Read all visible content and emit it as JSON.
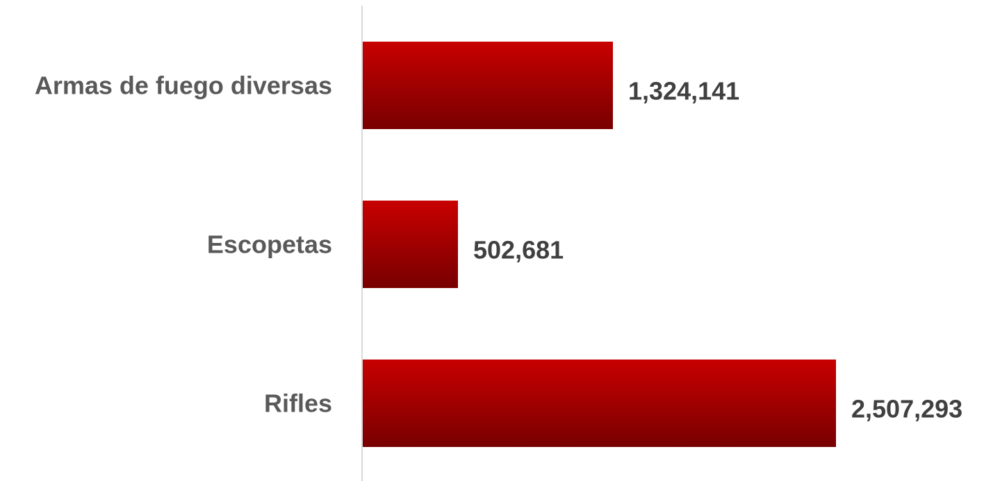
{
  "chart_data": {
    "type": "bar",
    "orientation": "horizontal",
    "categories": [
      "Armas de fuego diversas",
      "Escopetas",
      "Rifles"
    ],
    "values": [
      1324141,
      502681,
      2507293
    ],
    "value_labels": [
      "1,324,141",
      "502,681",
      "2,507,293"
    ],
    "title": "",
    "xlabel": "",
    "ylabel": "",
    "grid": false,
    "legend": "none",
    "colors": {
      "bar_top": "#c80000",
      "bar_bottom": "#780000",
      "axis": "#d9d9d9",
      "category_text": "#595959",
      "value_text": "#404040"
    }
  }
}
